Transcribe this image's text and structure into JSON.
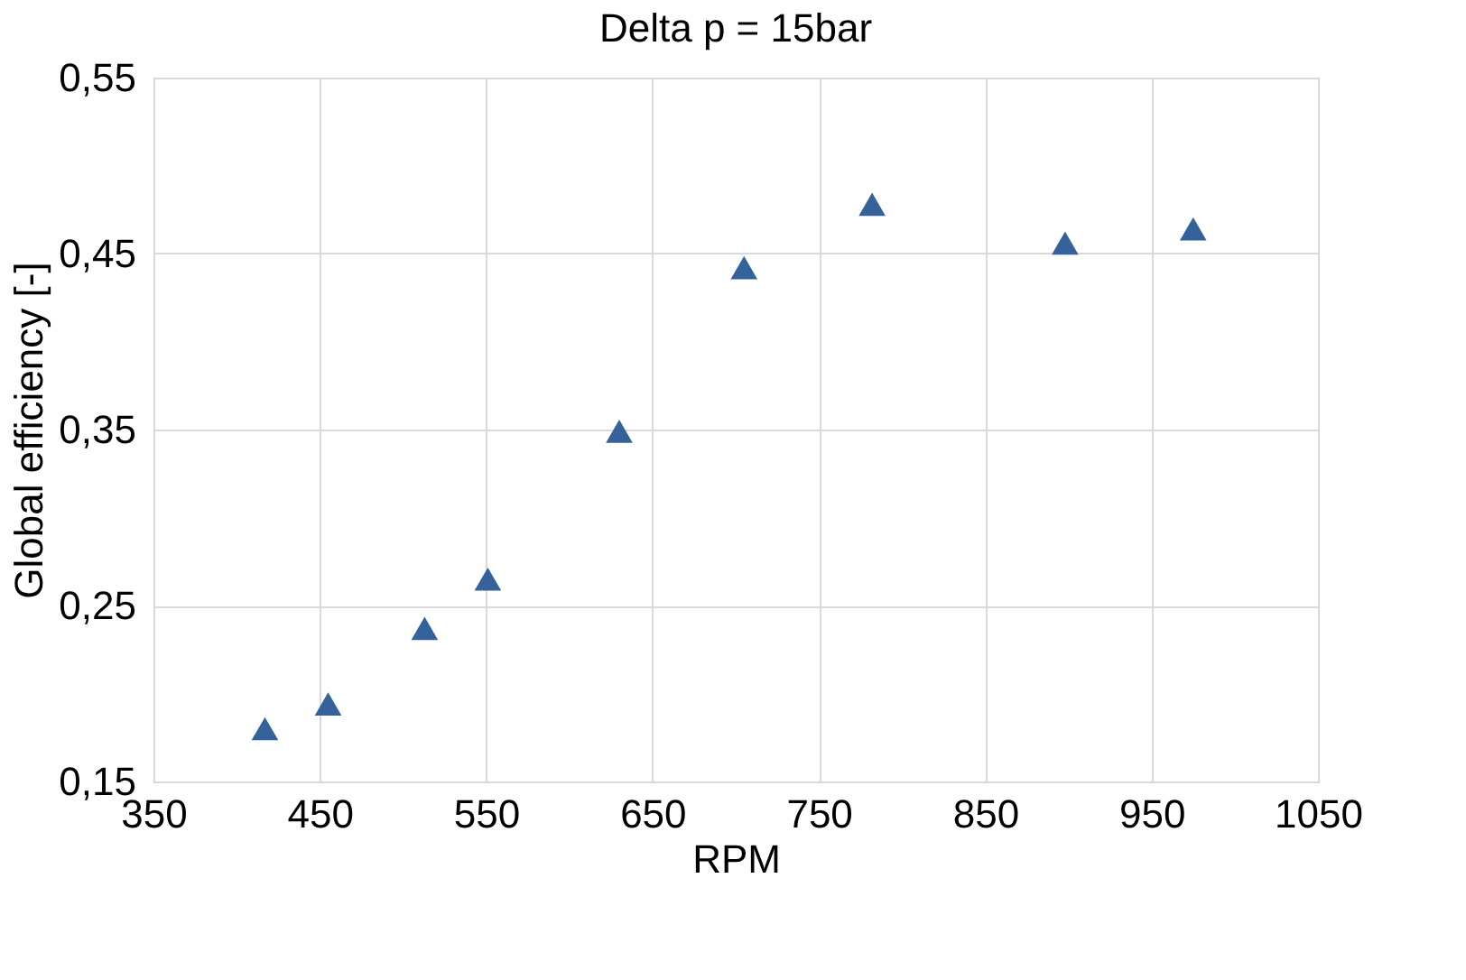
{
  "chart_data": {
    "type": "scatter",
    "title": "Delta p = 15bar",
    "xlabel": "RPM",
    "ylabel": "Global efficiency [-]",
    "x": [
      417,
      455,
      513,
      551,
      630,
      705,
      782,
      898,
      975
    ],
    "series": [
      {
        "color": "#35629a",
        "values": [
          0.18,
          0.194,
          0.237,
          0.265,
          0.349,
          0.442,
          0.478,
          0.456,
          0.464
        ]
      }
    ],
    "xlim": [
      350,
      1050
    ],
    "xticks": [
      350,
      450,
      550,
      650,
      750,
      850,
      950,
      1050
    ],
    "ylim": [
      0.15,
      0.55
    ],
    "yticks": [
      {
        "value": 0.15,
        "label": "0,15"
      },
      {
        "value": 0.25,
        "label": "0,25"
      },
      {
        "value": 0.35,
        "label": "0,35"
      },
      {
        "value": 0.45,
        "label": "0,45"
      },
      {
        "value": 0.55,
        "label": "0,55"
      }
    ],
    "grid": true,
    "marker": "triangle",
    "legend": false
  }
}
